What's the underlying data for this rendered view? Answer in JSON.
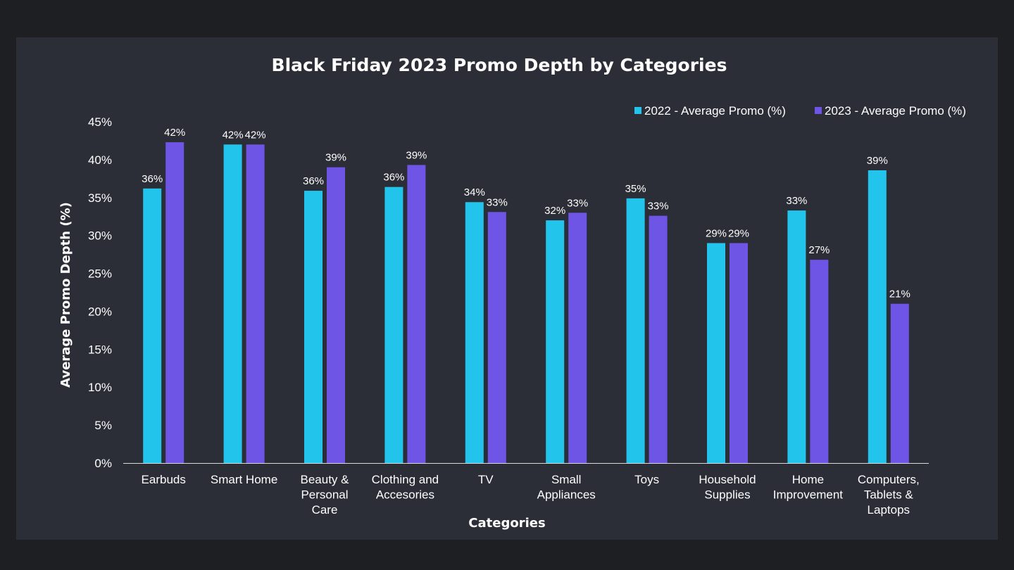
{
  "chart_data": {
    "type": "bar",
    "title": "Black Friday 2023 Promo Depth by Categories",
    "xlabel": "Categories",
    "ylabel": "Average Promo Depth (%)",
    "ylim": [
      0,
      45
    ],
    "yticks": [
      0,
      5,
      10,
      15,
      20,
      25,
      30,
      35,
      40,
      45
    ],
    "ytick_labels": [
      "0%",
      "5%",
      "10%",
      "15%",
      "20%",
      "25%",
      "30%",
      "35%",
      "40%",
      "45%"
    ],
    "legend_position": "top-right",
    "grid": false,
    "categories": [
      [
        "Earbuds"
      ],
      [
        "Smart Home"
      ],
      [
        "Beauty &",
        "Personal",
        "Care"
      ],
      [
        "Clothing and",
        "Accesories"
      ],
      [
        "TV"
      ],
      [
        "Small",
        "Appliances"
      ],
      [
        "Toys"
      ],
      [
        "Household",
        "Supplies"
      ],
      [
        "Home",
        "Improvement"
      ],
      [
        "Computers,",
        "Tablets &",
        "Laptops"
      ]
    ],
    "series": [
      {
        "name": "2022 - Average Promo  (%)",
        "color": "#23c4ec",
        "values": [
          36.2,
          42.0,
          35.9,
          36.4,
          34.4,
          32.0,
          34.9,
          29.0,
          33.3,
          38.6
        ],
        "labels": [
          "36%",
          "42%",
          "36%",
          "36%",
          "34%",
          "32%",
          "35%",
          "29%",
          "33%",
          "39%"
        ]
      },
      {
        "name": "2023 - Average Promo  (%)",
        "color": "#6e55e6",
        "values": [
          42.3,
          42.0,
          39.0,
          39.3,
          33.1,
          33.0,
          32.6,
          29.0,
          26.8,
          21.0
        ],
        "labels": [
          "42%",
          "42%",
          "39%",
          "39%",
          "33%",
          "33%",
          "33%",
          "29%",
          "27%",
          "21%"
        ]
      }
    ]
  }
}
